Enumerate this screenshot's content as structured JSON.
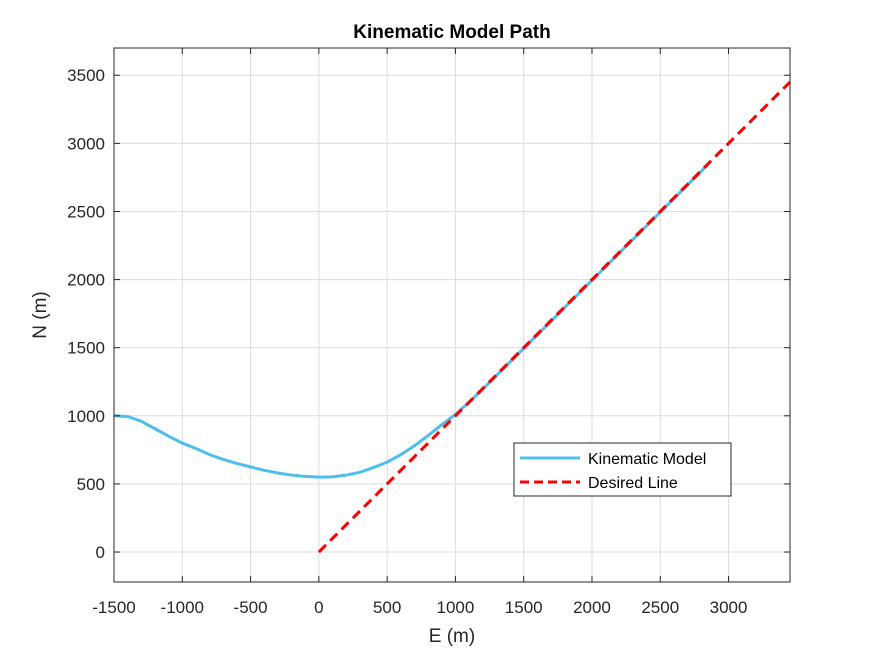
{
  "chart_data": {
    "type": "line",
    "title": "Kinematic Model Path",
    "xlabel": "E (m)",
    "ylabel": "N (m)",
    "xlim": [
      -1500,
      3450
    ],
    "ylim": [
      -220,
      3700
    ],
    "xticks": [
      -1500,
      -1000,
      -500,
      0,
      500,
      1000,
      1500,
      2000,
      2500,
      3000
    ],
    "yticks": [
      0,
      500,
      1000,
      1500,
      2000,
      2500,
      3000,
      3500
    ],
    "grid": true,
    "legend_position": "lower-right",
    "series": [
      {
        "name": "Kinematic Model",
        "color": "#4dbeee",
        "style": "solid",
        "x": [
          -1500,
          -1400,
          -1300,
          -1200,
          -1100,
          -1000,
          -900,
          -800,
          -700,
          -600,
          -500,
          -400,
          -300,
          -200,
          -100,
          0,
          100,
          200,
          300,
          400,
          500,
          600,
          700,
          800,
          900,
          1000,
          1100,
          1200,
          1300,
          1500,
          1800,
          2100,
          2400,
          2700,
          2850
        ],
        "y": [
          1000,
          995,
          960,
          905,
          850,
          800,
          760,
          715,
          680,
          650,
          625,
          600,
          580,
          565,
          555,
          550,
          552,
          565,
          585,
          620,
          660,
          715,
          780,
          855,
          935,
          1010,
          1100,
          1195,
          1295,
          1495,
          1795,
          2095,
          2395,
          2695,
          2845
        ]
      },
      {
        "name": "Desired Line",
        "color": "#ff0000",
        "style": "dashed",
        "x": [
          0,
          3450
        ],
        "y": [
          0,
          3450
        ]
      }
    ]
  }
}
